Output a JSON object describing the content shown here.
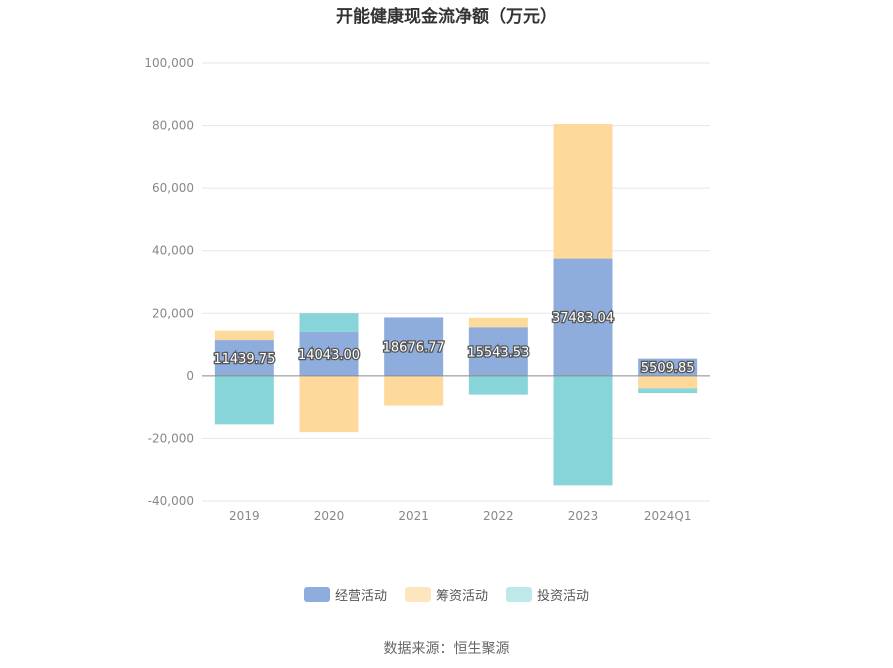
{
  "chart_data": {
    "type": "bar",
    "stacked": true,
    "title": "开能健康现金流净额（万元）",
    "categories": [
      "2019",
      "2020",
      "2021",
      "2022",
      "2023",
      "2024Q1"
    ],
    "series": [
      {
        "name": "经营活动",
        "color": "#8eaddc",
        "values": [
          11439.75,
          14043.0,
          18676.77,
          15543.53,
          37483.04,
          5509.85
        ]
      },
      {
        "name": "筹资活动",
        "color": "#fdd99b",
        "values": [
          3000,
          -18000,
          -9500,
          3000,
          43000,
          -4000
        ]
      },
      {
        "name": "投资活动",
        "color": "#88d5d9",
        "values": [
          -15500,
          6000,
          0,
          -6000,
          -35000,
          -1500
        ]
      }
    ],
    "data_labels": [
      "11439.75",
      "14043.00",
      "18676.77",
      "15543.53",
      "37483.04",
      "5509.85"
    ],
    "ylim": [
      -40000,
      100000
    ],
    "yticks": [
      "100,000",
      "80,000",
      "60,000",
      "40,000",
      "20,000",
      "0",
      "-20,000",
      "-40,000"
    ],
    "ytick_values": [
      100000,
      80000,
      60000,
      40000,
      20000,
      0,
      -20000,
      -40000
    ],
    "grid": true,
    "legend_position": "bottom"
  },
  "source": "数据来源：恒生聚源"
}
